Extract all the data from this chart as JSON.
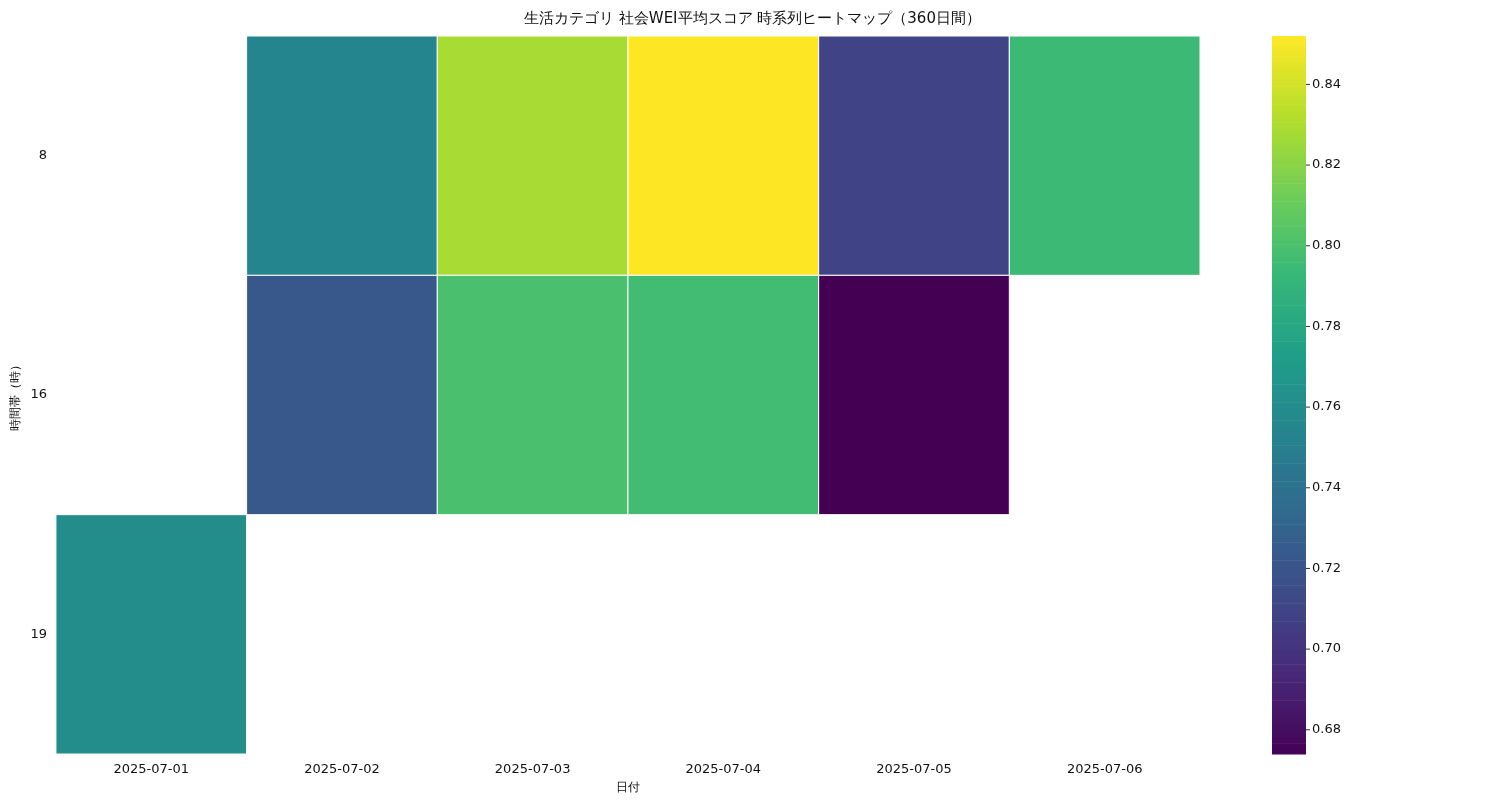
{
  "chart_data": {
    "type": "heatmap",
    "title": "生活カテゴリ 社会WEI平均スコア 時系列ヒートマップ（360日間）",
    "xlabel": "日付",
    "ylabel": "時間帯（時）",
    "categories": [
      "2025-07-01",
      "2025-07-02",
      "2025-07-03",
      "2025-07-04",
      "2025-07-05",
      "2025-07-06"
    ],
    "y_categories": [
      "8",
      "16",
      "19"
    ],
    "cells": [
      [
        null,
        0.755,
        0.829,
        0.852,
        0.71,
        0.795
      ],
      [
        null,
        0.722,
        0.8,
        0.797,
        0.674,
        null
      ],
      [
        0.761,
        null,
        null,
        null,
        null,
        null
      ]
    ],
    "clim": [
      0.674,
      0.852
    ],
    "cticks": [
      0.68,
      {
        "value": 0.7,
        "label": "0.70"
      },
      0.72,
      0.74,
      0.76,
      0.78,
      {
        "value": 0.8,
        "label": "0.80"
      },
      0.82,
      0.84
    ]
  }
}
